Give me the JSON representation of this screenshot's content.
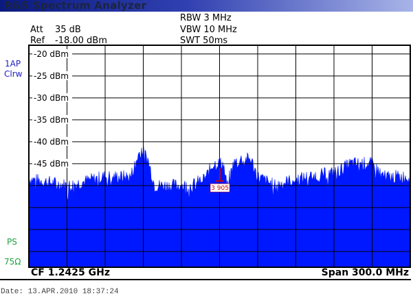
{
  "title": "R&S Spectrum Analyzer",
  "settings": {
    "rbw": "RBW 3 MHz",
    "vbw": "VBW 10 MHz",
    "swt": "SWT 50ms",
    "att_label": "Att",
    "att_value": "35 dB",
    "ref_label": "Ref",
    "ref_value": "-18.00 dBm"
  },
  "side_labels": {
    "trace": "1AP",
    "mode": "Clrw",
    "ps": "PS",
    "impedance": "75Ω"
  },
  "footer": {
    "cf": "CF 1.2425 GHz",
    "span": "Span 300.0 MHz",
    "date": "Date: 13.APR.2010   18:37:24"
  },
  "colors": {
    "trace": "#0018ff",
    "marker": "#cc0000",
    "side_blue": "#2020c0",
    "side_green": "#20a040"
  },
  "chart_data": {
    "type": "area",
    "title": "",
    "xlabel": "",
    "ylabel": "",
    "x_unit": "MHz",
    "xlim": [
      1092.5,
      1392.5
    ],
    "ylim": [
      -68.6,
      -18
    ],
    "grid": true,
    "y_ticks": [
      {
        "value": -20,
        "label": "-20 dBm"
      },
      {
        "value": -25,
        "label": "-25 dBm"
      },
      {
        "value": -30,
        "label": "-30 dBm"
      },
      {
        "value": -35,
        "label": "-35 dBm"
      },
      {
        "value": -40,
        "label": "-40 dBm"
      },
      {
        "value": -45,
        "label": "-45 dBm"
      }
    ],
    "series": [
      {
        "x": [
          1092.5,
          1123.9,
          1150.9,
          1172.5,
          1180.6,
          1186,
          1191.4,
          1221.2,
          1232,
          1237.4,
          1245.5,
          1248.2,
          1253.6,
          1259,
          1267.1,
          1272.5,
          1286,
          1296.8,
          1313,
          1334.7,
          1345.5,
          1361.7,
          1372.5,
          1392.5
        ],
        "y": [
          -48.5,
          -50,
          -48,
          -48,
          -41.5,
          -44,
          -50,
          -50,
          -48,
          -45,
          -45,
          -50,
          -45,
          -44,
          -44,
          -48,
          -50,
          -49,
          -48,
          -47,
          -45,
          -45,
          -48,
          -48
        ]
      }
    ],
    "marker": {
      "label": "3 905",
      "x": 1242.8,
      "y": -48
    }
  }
}
